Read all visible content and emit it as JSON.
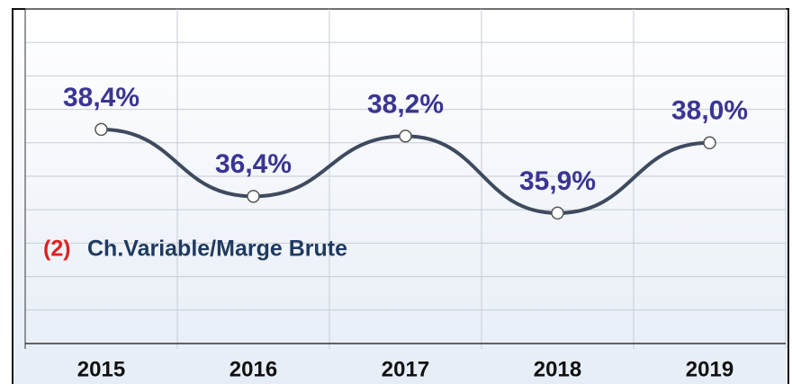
{
  "chart_data": {
    "type": "line",
    "categories": [
      "2015",
      "2016",
      "2017",
      "2018",
      "2019"
    ],
    "series": [
      {
        "color": "#3e4a5e",
        "values": [
          38.4,
          36.4,
          38.2,
          35.9,
          38.0
        ],
        "value_labels": [
          "38,4%",
          "36,4%",
          "38,2%",
          "35,9%",
          "38,0%"
        ]
      }
    ],
    "annotation": {
      "number": "(2)",
      "text": "Ch.Variable/Marge Brute"
    },
    "ylim": [
      32,
      42
    ],
    "yticks": [
      32,
      33,
      34,
      35,
      36,
      37,
      38,
      39,
      40,
      41,
      42
    ],
    "grid": true
  }
}
